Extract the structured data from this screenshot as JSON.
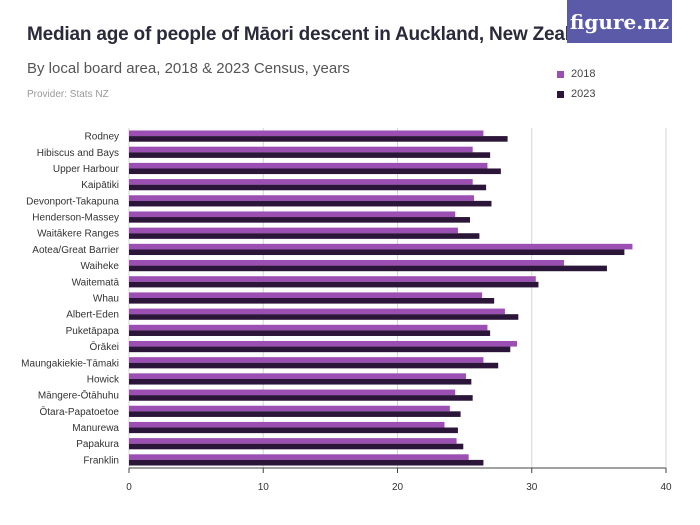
{
  "title": "Median age of people of Māori descent in Auckland, New Zealand",
  "subtitle": "By local board area, 2018 & 2023 Census, years",
  "provider": "Provider: Stats NZ",
  "brand": "figure.nz",
  "colors": {
    "s2018": "#9b4fb2",
    "s2023": "#2b1538",
    "grid": "#d6d6d6",
    "axis": "#444444"
  },
  "chart_data": {
    "type": "bar",
    "orientation": "horizontal",
    "categories": [
      "Rodney",
      "Hibiscus and Bays",
      "Upper Harbour",
      "Kaipātiki",
      "Devonport-Takapuna",
      "Henderson-Massey",
      "Waitākere Ranges",
      "Aotea/Great Barrier",
      "Waiheke",
      "Waitematā",
      "Whau",
      "Albert-Eden",
      "Puketāpapa",
      "Ōrākei",
      "Maungakiekie-Tāmaki",
      "Howick",
      "Māngere-Ōtāhuhu",
      "Ōtara-Papatoetoe",
      "Manurewa",
      "Papakura",
      "Franklin"
    ],
    "series": [
      {
        "name": "2018",
        "values": [
          26.4,
          25.6,
          26.7,
          25.6,
          25.7,
          24.3,
          24.5,
          37.5,
          32.4,
          30.3,
          26.3,
          28.0,
          26.7,
          28.9,
          26.4,
          25.1,
          24.3,
          23.9,
          23.5,
          24.4,
          25.3
        ]
      },
      {
        "name": "2023",
        "values": [
          28.2,
          26.9,
          27.7,
          26.6,
          27.0,
          25.4,
          26.1,
          36.9,
          35.6,
          30.5,
          27.2,
          29.0,
          26.9,
          28.4,
          27.5,
          25.5,
          25.6,
          24.7,
          24.5,
          24.9,
          26.4
        ]
      }
    ],
    "xlim": [
      0,
      40
    ],
    "xticks": [
      "0",
      "10",
      "20",
      "30",
      "40"
    ],
    "legend_position": "top-right",
    "grid": true
  }
}
